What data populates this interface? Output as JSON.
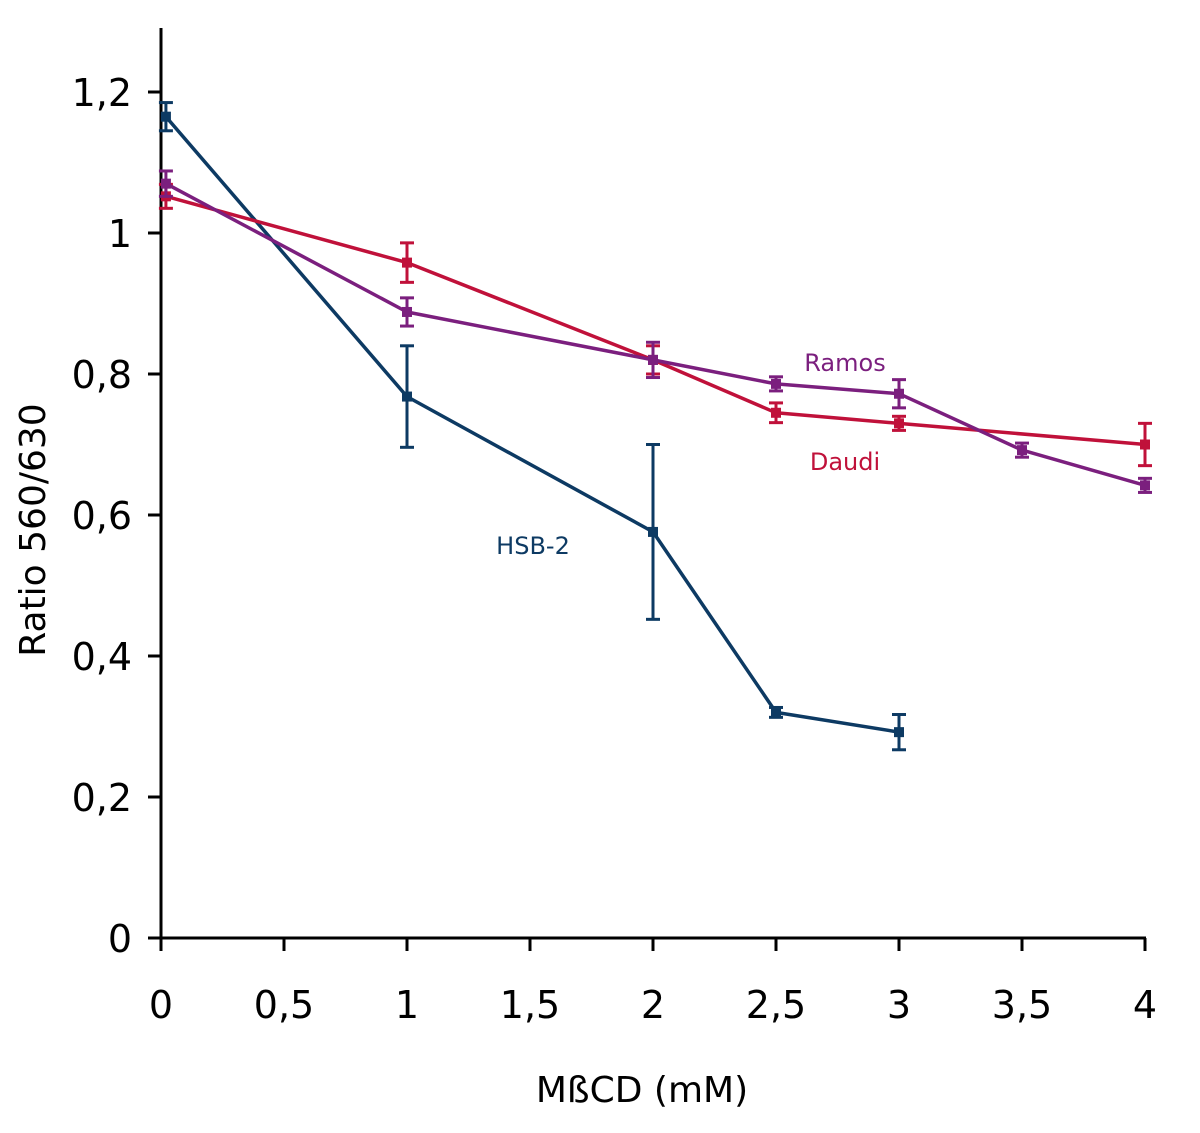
{
  "chart_data": {
    "type": "line",
    "xlabel": "MßCD (mM)",
    "ylabel": "Ratio 560/630",
    "xlim": [
      0,
      4
    ],
    "ylim": [
      0,
      1.3
    ],
    "x_ticks": [
      0,
      0.5,
      1,
      1.5,
      2,
      2.5,
      3,
      3.5,
      4
    ],
    "x_tick_labels": [
      "0",
      "0,5",
      "1",
      "1,5",
      "2",
      "2,5",
      "3",
      "3,5",
      "4"
    ],
    "y_ticks": [
      0,
      0.2,
      0.4,
      0.6,
      0.8,
      1.0,
      1.2
    ],
    "y_tick_labels": [
      "0",
      "0,2",
      "0,4",
      "0,6",
      "0,8",
      "1",
      "1,2"
    ],
    "grid": false,
    "legend": "none (series labeled inline)",
    "series": [
      {
        "name": "HSB-2",
        "color": "#0d3a63",
        "x": [
          0.02,
          1,
          2,
          2.5,
          3
        ],
        "values": [
          1.165,
          0.768,
          0.576,
          0.32,
          0.292
        ],
        "errors": [
          0.02,
          0.072,
          0.124,
          0.007,
          0.025
        ]
      },
      {
        "name": "Daudi",
        "color": "#c0113a",
        "x": [
          0.02,
          1,
          2,
          2.5,
          3,
          4
        ],
        "values": [
          1.052,
          0.958,
          0.82,
          0.745,
          0.73,
          0.7
        ],
        "errors": [
          0.017,
          0.028,
          0.02,
          0.014,
          0.01,
          0.03
        ]
      },
      {
        "name": "Ramos",
        "color": "#7b1f7e",
        "x": [
          0.02,
          1,
          2,
          2.5,
          3,
          3.5,
          4
        ],
        "values": [
          1.07,
          0.888,
          0.82,
          0.786,
          0.772,
          0.692,
          0.642
        ],
        "errors": [
          0.018,
          0.02,
          0.025,
          0.01,
          0.02,
          0.01,
          0.01
        ]
      }
    ]
  }
}
